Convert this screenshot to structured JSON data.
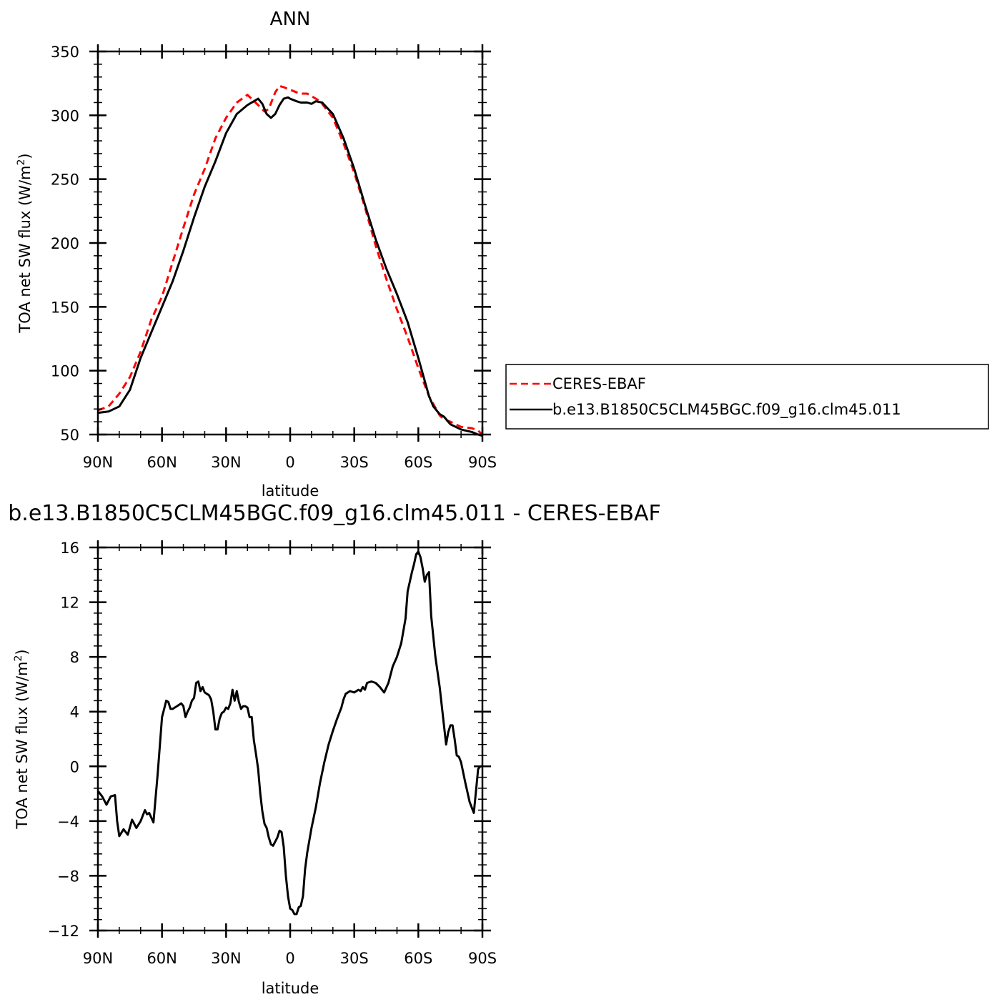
{
  "colors": {
    "obs": "#ff0000",
    "model": "#000000"
  },
  "chart_data": [
    {
      "type": "line",
      "title": "ANN",
      "xlabel": "latitude",
      "ylabel_prefix": "TOA net SW flux (W/m",
      "ylabel_sup": "2",
      "ylabel_suffix": ")",
      "xlim": [
        90,
        -90
      ],
      "ylim": [
        50,
        350
      ],
      "x_ticks": [
        {
          "v": 90,
          "label": "90N"
        },
        {
          "v": 60,
          "label": "60N"
        },
        {
          "v": 30,
          "label": "30N"
        },
        {
          "v": 0,
          "label": "0"
        },
        {
          "v": -30,
          "label": "30S"
        },
        {
          "v": -60,
          "label": "60S"
        },
        {
          "v": -90,
          "label": "90S"
        }
      ],
      "y_ticks": [
        {
          "v": 50,
          "label": "50"
        },
        {
          "v": 100,
          "label": "100"
        },
        {
          "v": 150,
          "label": "150"
        },
        {
          "v": 200,
          "label": "200"
        },
        {
          "v": 250,
          "label": "250"
        },
        {
          "v": 300,
          "label": "300"
        },
        {
          "v": 350,
          "label": "350"
        }
      ],
      "legend_position": "right",
      "series": [
        {
          "name": "CERES-EBAF",
          "style": "dashed",
          "color": "#ff0000",
          "x": [
            90,
            85,
            80,
            75,
            70,
            65,
            60,
            55,
            50,
            45,
            40,
            35,
            30,
            25,
            20,
            15,
            12,
            10,
            7,
            5,
            3,
            0,
            -3,
            -5,
            -8,
            -10,
            -13,
            -15,
            -20,
            -25,
            -30,
            -35,
            -40,
            -45,
            -50,
            -55,
            -60,
            -65,
            -70,
            -72,
            -75,
            -80,
            -85,
            -88,
            -90
          ],
          "y": [
            69,
            72,
            82,
            95,
            115,
            140,
            158,
            185,
            212,
            238,
            258,
            282,
            298,
            310,
            316,
            308,
            303,
            305,
            318,
            323,
            322,
            320,
            318,
            317,
            317,
            315,
            312,
            309,
            298,
            278,
            255,
            228,
            198,
            172,
            148,
            126,
            102,
            80,
            65,
            62,
            60,
            56,
            55,
            53,
            50
          ]
        },
        {
          "name": "b.e13.B1850C5CLM45BGC.f09_g16.clm45.011",
          "style": "solid",
          "color": "#000000",
          "x": [
            90,
            85,
            80,
            75,
            70,
            65,
            60,
            55,
            50,
            45,
            40,
            35,
            30,
            25,
            20,
            17,
            15,
            13,
            11,
            9,
            7,
            5,
            3,
            1,
            0,
            -3,
            -5,
            -8,
            -10,
            -12,
            -15,
            -20,
            -25,
            -30,
            -35,
            -40,
            -45,
            -50,
            -55,
            -60,
            -65,
            -67,
            -70,
            -72,
            -75,
            -80,
            -85,
            -88,
            -90
          ],
          "y": [
            67,
            68,
            72,
            85,
            110,
            130,
            150,
            170,
            194,
            220,
            244,
            264,
            286,
            301,
            308,
            311,
            313,
            309,
            301,
            298,
            301,
            308,
            313,
            314,
            313,
            311,
            310,
            310,
            309,
            311,
            310,
            301,
            282,
            258,
            230,
            203,
            180,
            160,
            138,
            110,
            80,
            72,
            66,
            64,
            58,
            54,
            52,
            50,
            49
          ]
        }
      ]
    },
    {
      "type": "line",
      "title": "b.e13.B1850C5CLM45BGC.f09_g16.clm45.011 - CERES-EBAF",
      "xlabel": "latitude",
      "ylabel_prefix": "TOA net SW flux (W/m",
      "ylabel_sup": "2",
      "ylabel_suffix": ")",
      "xlim": [
        90,
        -90
      ],
      "ylim": [
        -12,
        16
      ],
      "x_ticks": [
        {
          "v": 90,
          "label": "90N"
        },
        {
          "v": 60,
          "label": "60N"
        },
        {
          "v": 30,
          "label": "30N"
        },
        {
          "v": 0,
          "label": "0"
        },
        {
          "v": -30,
          "label": "30S"
        },
        {
          "v": -60,
          "label": "60S"
        },
        {
          "v": -90,
          "label": "90S"
        }
      ],
      "y_ticks": [
        {
          "v": -12,
          "label": "−12"
        },
        {
          "v": -8,
          "label": "−8"
        },
        {
          "v": -4,
          "label": "−4"
        },
        {
          "v": 0,
          "label": "0"
        },
        {
          "v": 4,
          "label": "4"
        },
        {
          "v": 8,
          "label": "8"
        },
        {
          "v": 12,
          "label": "12"
        },
        {
          "v": 16,
          "label": "16"
        }
      ],
      "series": [
        {
          "style": "solid",
          "color": "#000000",
          "x": [
            90,
            88,
            86,
            84,
            82,
            81,
            80,
            78,
            76,
            74,
            72,
            70,
            68,
            67,
            66,
            64,
            62,
            60,
            59,
            58,
            57,
            56,
            55,
            54,
            53,
            52,
            51,
            50,
            49,
            48,
            47,
            46,
            45,
            44,
            43,
            42,
            41,
            40,
            39,
            38,
            37,
            36,
            35,
            34,
            33,
            32,
            31,
            30,
            29,
            28,
            27,
            26,
            25,
            24,
            23,
            22,
            21,
            20,
            19,
            18,
            17,
            16,
            15,
            14,
            13,
            12,
            11,
            10,
            9,
            8,
            7,
            6,
            5,
            4,
            3,
            2,
            1,
            0,
            -1,
            -2,
            -3,
            -4,
            -5,
            -6,
            -7,
            -8,
            -10,
            -12,
            -14,
            -16,
            -18,
            -20,
            -22,
            -24,
            -25,
            -26,
            -28,
            -30,
            -32,
            -33,
            -34,
            -35,
            -36,
            -38,
            -40,
            -42,
            -44,
            -46,
            -48,
            -50,
            -52,
            -54,
            -55,
            -56,
            -57,
            -58,
            -59,
            -60,
            -61,
            -62,
            -63,
            -64,
            -65,
            -66,
            -68,
            -70,
            -72,
            -73,
            -74,
            -75,
            -76,
            -77,
            -78,
            -79,
            -80,
            -82,
            -84,
            -86,
            -88,
            -89,
            -90
          ],
          "y": [
            -1.8,
            -2.2,
            -2.8,
            -2.2,
            -2.1,
            -4.0,
            -5.1,
            -4.6,
            -5.0,
            -3.9,
            -4.5,
            -4.0,
            -3.2,
            -3.5,
            -3.4,
            -4.1,
            -0.5,
            3.6,
            4.2,
            4.8,
            4.7,
            4.2,
            4.2,
            4.3,
            4.4,
            4.5,
            4.6,
            4.4,
            3.6,
            4.0,
            4.3,
            4.8,
            5.0,
            6.1,
            6.2,
            5.5,
            5.8,
            5.4,
            5.3,
            5.2,
            4.9,
            4.0,
            2.7,
            2.7,
            3.5,
            3.9,
            4.0,
            4.3,
            4.2,
            4.6,
            5.6,
            4.8,
            5.5,
            4.7,
            4.2,
            4.4,
            4.4,
            4.3,
            3.6,
            3.6,
            1.9,
            0.9,
            -0.2,
            -2.0,
            -3.3,
            -4.2,
            -4.5,
            -5.2,
            -5.7,
            -5.8,
            -5.5,
            -5.2,
            -4.7,
            -4.8,
            -5.9,
            -8.0,
            -9.5,
            -10.4,
            -10.5,
            -10.8,
            -10.8,
            -10.3,
            -10.2,
            -9.5,
            -7.5,
            -6.3,
            -4.5,
            -3.0,
            -1.2,
            0.3,
            1.6,
            2.6,
            3.5,
            4.3,
            4.9,
            5.3,
            5.5,
            5.4,
            5.6,
            5.5,
            5.8,
            5.6,
            6.1,
            6.2,
            6.1,
            5.8,
            5.4,
            6.1,
            7.3,
            8.0,
            9.0,
            10.8,
            12.8,
            13.5,
            14.2,
            14.8,
            15.5,
            15.7,
            15.3,
            14.5,
            13.5,
            14.0,
            14.2,
            11.0,
            8.0,
            5.8,
            3.0,
            1.6,
            2.5,
            3.0,
            3.0,
            2.0,
            0.8,
            0.7,
            0.3,
            -1.2,
            -2.6,
            -3.4,
            -0.2,
            0.0,
            0.0
          ]
        }
      ]
    }
  ],
  "legend": {
    "entries": [
      {
        "label": "CERES-EBAF",
        "style": "dashed"
      },
      {
        "label": "b.e13.B1850C5CLM45BGC.f09_g16.clm45.011",
        "style": "solid"
      }
    ]
  }
}
